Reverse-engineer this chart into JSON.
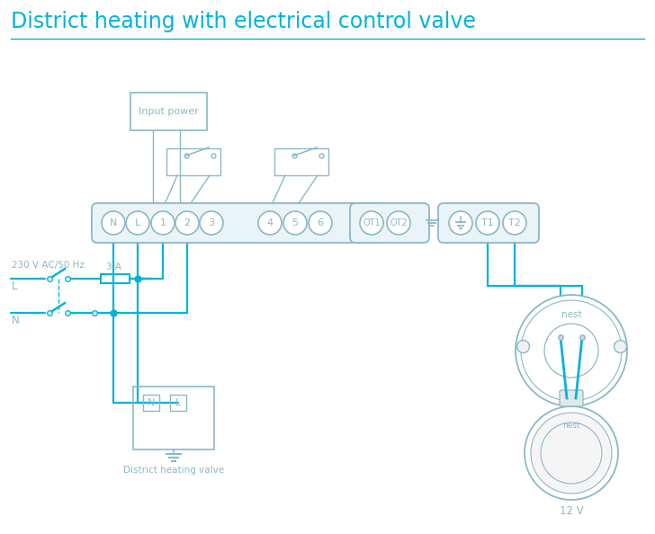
{
  "title": "District heating with electrical control valve",
  "title_color": "#00b4d8",
  "title_fontsize": 17,
  "bg_color": "#ffffff",
  "tc": "#8ab8c8",
  "wc": "#00b4d8",
  "ww": 1.6,
  "terminal_labels_main": [
    "N",
    "L",
    "1",
    "2",
    "3",
    "4",
    "5",
    "6"
  ],
  "terminal_labels_ot": [
    "OT1",
    "OT2"
  ],
  "terminal_labels_t": [
    "T1",
    "T2"
  ],
  "label_230v": "230 V AC/50 Hz",
  "label_L": "L",
  "label_N": "N",
  "label_3A": "3 A",
  "label_input_power": "Input power",
  "label_district": "District heating valve",
  "label_12v": "12 V",
  "label_nest": "nest",
  "label_nest2": "nest"
}
